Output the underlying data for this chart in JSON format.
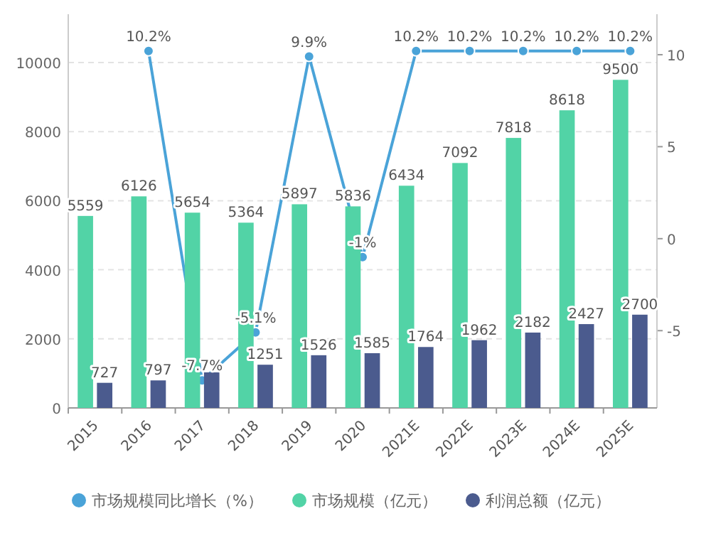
{
  "chart_data": {
    "type": "bar",
    "categories": [
      "2015",
      "2016",
      "2017",
      "2018",
      "2019",
      "2020",
      "2021E",
      "2022E",
      "2023E",
      "2024E",
      "2025E"
    ],
    "series": [
      {
        "name": "市场规模同比增长（%）",
        "type": "line",
        "axis": "y2",
        "color": "#4aa3d8",
        "marker": "circle",
        "values": [
          null,
          10.2,
          -7.7,
          -5.1,
          9.9,
          -1,
          10.2,
          10.2,
          10.2,
          10.2,
          10.2
        ],
        "value_labels": [
          null,
          "10.2%",
          "-7.7%",
          "-5.1%",
          "9.9%",
          "-1%",
          "10.2%",
          "10.2%",
          "10.2%",
          "10.2%",
          "10.2%"
        ]
      },
      {
        "name": "市场规模（亿元）",
        "color": "#52d3a6",
        "values": [
          5559,
          6126,
          5654,
          5364,
          5897,
          5836,
          6434,
          7092,
          7818,
          8618,
          9500
        ],
        "value_labels": [
          "5559",
          "6126",
          "5654",
          "5364",
          "5897",
          "5836",
          "6434",
          "7092",
          "7818",
          "8618",
          "9500"
        ]
      },
      {
        "name": "利润总额（亿元）",
        "color": "#4b5b8e",
        "values": [
          727,
          797,
          1030,
          1251,
          1526,
          1585,
          1764,
          1962,
          2182,
          2427,
          2700
        ],
        "value_labels": [
          "727",
          "797",
          null,
          "1251",
          "1526",
          "1585",
          "1764",
          "1962",
          "2182",
          "2427",
          "2700"
        ]
      }
    ],
    "ylim": [
      0,
      11400
    ],
    "yticks": [
      0,
      2000,
      4000,
      6000,
      8000,
      10000
    ],
    "y2lim": [
      -9.2,
      12.2
    ],
    "y2ticks": [
      -5,
      0,
      5,
      10
    ],
    "grid": "y",
    "legend": "bottom"
  }
}
